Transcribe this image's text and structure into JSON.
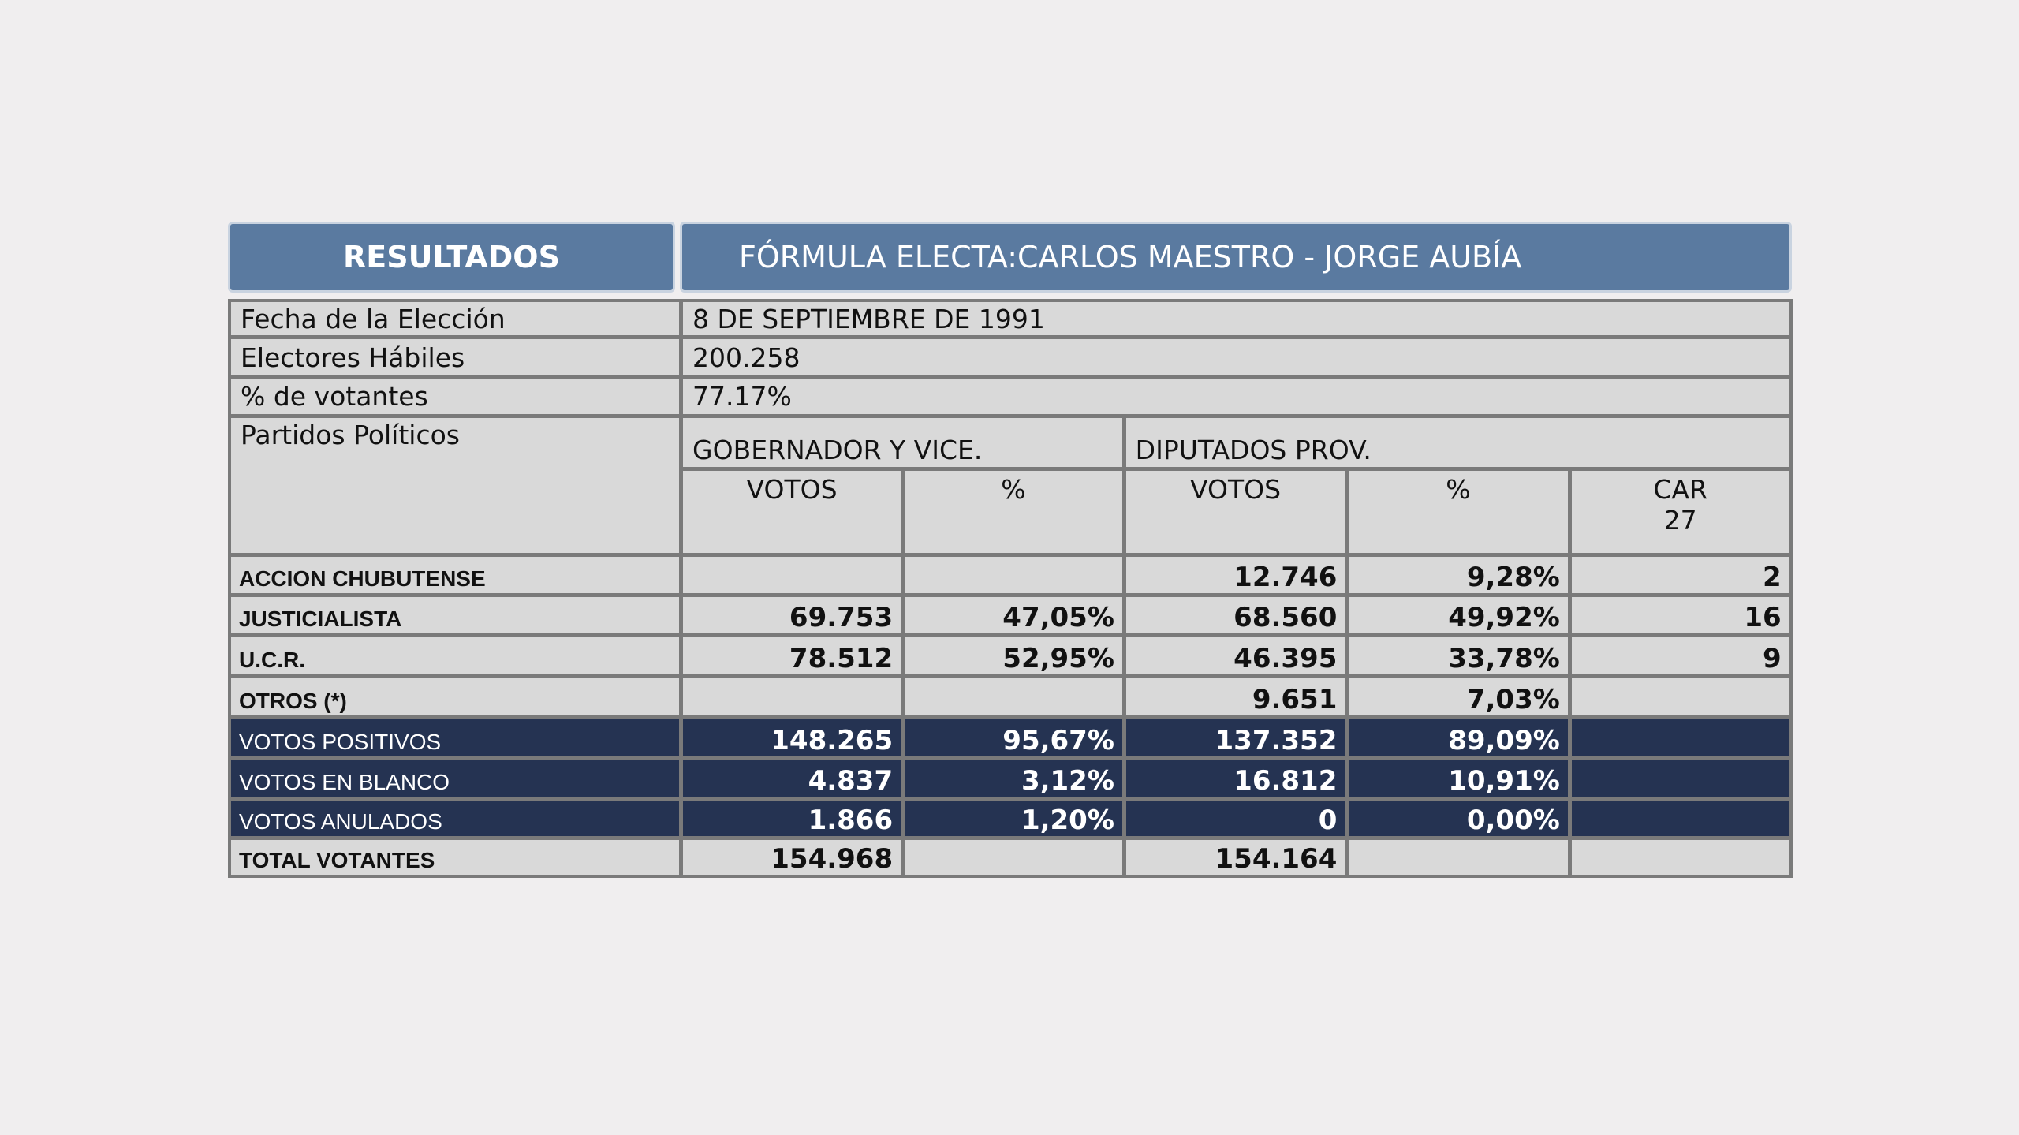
{
  "header": {
    "label": "RESULTADOS",
    "formula": "FÓRMULA ELECTA:CARLOS MAESTRO - JORGE AUBÍA"
  },
  "info": {
    "rows": [
      [
        "Fecha de la Elección",
        "8 DE SEPTIEMBRE DE 1991"
      ],
      [
        "Electores Hábiles",
        "200.258"
      ],
      [
        "% de votantes",
        "77.17%"
      ]
    ]
  },
  "table": {
    "parties_label": "Partidos Políticos",
    "groups": [
      "GOBERNADOR Y VICE.",
      "DIPUTADOS PROV."
    ],
    "subheaders": [
      "VOTOS",
      "%",
      "VOTOS",
      "%",
      "CAR",
      "27"
    ],
    "rows": [
      [
        "ACCION CHUBUTENSE",
        null,
        null,
        "12.746",
        "9,28%",
        "2"
      ],
      [
        "JUSTICIALISTA",
        "69.753",
        "47,05%",
        "68.560",
        "49,92%",
        "16"
      ],
      [
        "U.C.R.",
        "78.512",
        "52,95%",
        "46.395",
        "33,78%",
        "9"
      ],
      [
        "OTROS (*)",
        null,
        null,
        "9.651",
        "7,03%",
        null
      ],
      [
        "VOTOS POSITIVOS",
        "148.265",
        "95,67%",
        "137.352",
        "89,09%",
        null
      ],
      [
        "VOTOS EN BLANCO",
        "4.837",
        "3,12%",
        "16.812",
        "10,91%",
        null
      ],
      [
        "VOTOS ANULADOS",
        "1.866",
        "1,20%",
        "0",
        "0,00%",
        null
      ],
      [
        "TOTAL VOTANTES",
        "154.968",
        null,
        "154.164",
        null,
        null
      ]
    ]
  }
}
